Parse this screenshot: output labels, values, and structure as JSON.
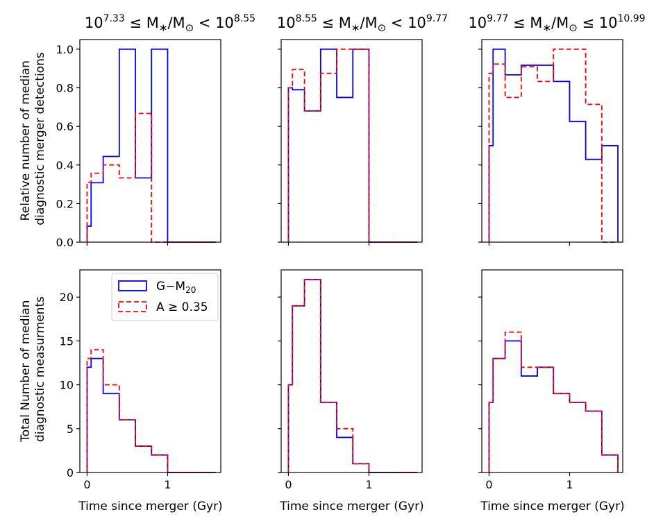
{
  "colors": {
    "gm20": "#0000ff",
    "asym": "#ff0000"
  },
  "legend": {
    "gm20_label": "G−M",
    "gm20_sub": "20",
    "asym_label": "A ≥ 0.35"
  },
  "titles": [
    {
      "pre": "10",
      "lo_exp": "7.33",
      "mid": " ≤ M",
      "star": "∗",
      "sep": "/M",
      "sun": "⊙",
      "op": " < 10",
      "hi_exp": "8.55"
    },
    {
      "pre": "10",
      "lo_exp": "8.55",
      "mid": " ≤ M",
      "star": "∗",
      "sep": "/M",
      "sun": "⊙",
      "op": " < 10",
      "hi_exp": "9.77"
    },
    {
      "pre": "10",
      "lo_exp": "9.77",
      "mid": " ≤ M",
      "star": "∗",
      "sep": "/M",
      "sun": "⊙",
      "op": " ≤ 10",
      "hi_exp": "10.99"
    }
  ],
  "ylabel_top": [
    "Relative number of median",
    "diagnostic merger detections"
  ],
  "ylabel_bottom": [
    "Total Number of median",
    "diagnostic measurments"
  ],
  "xlabel": "Time since merger (Gyr)",
  "chart_data": [
    {
      "type": "step-histogram",
      "panel": "top-left",
      "xlim": [
        -0.09,
        1.66
      ],
      "ylim": [
        0,
        1.05
      ],
      "xticks": [
        0,
        1
      ],
      "yticks": [
        0.0,
        0.2,
        0.4,
        0.6,
        0.8,
        1.0
      ],
      "ytick_labels": [
        "0.0",
        "0.2",
        "0.4",
        "0.6",
        "0.8",
        "1.0"
      ],
      "series": [
        {
          "name": "G−M20",
          "x": [
            0,
            0.05,
            0.2,
            0.4,
            0.6,
            0.8,
            1.0,
            1.6
          ],
          "y": [
            0.083,
            0.308,
            0.444,
            1.0,
            0.333,
            1.0,
            0
          ]
        },
        {
          "name": "A ≥ 0.35",
          "x": [
            0,
            0.05,
            0.2,
            0.4,
            0.6,
            0.8,
            1.0,
            1.6
          ],
          "y": [
            0.31,
            0.357,
            0.4,
            0.333,
            0.667,
            0,
            0
          ]
        }
      ]
    },
    {
      "type": "step-histogram",
      "panel": "top-middle",
      "xlim": [
        -0.09,
        1.66
      ],
      "ylim": [
        0,
        1.05
      ],
      "xticks": [
        0,
        1
      ],
      "yticks": [
        0.0,
        0.2,
        0.4,
        0.6,
        0.8,
        1.0
      ],
      "series": [
        {
          "name": "G−M20",
          "x": [
            0,
            0.05,
            0.2,
            0.4,
            0.6,
            0.8,
            1.0,
            1.6
          ],
          "y": [
            0.8,
            0.79,
            0.68,
            1.0,
            0.75,
            1.0,
            0
          ]
        },
        {
          "name": "A ≥ 0.35",
          "x": [
            0,
            0.05,
            0.2,
            0.4,
            0.6,
            0.8,
            1.0,
            1.6
          ],
          "y": [
            0.8,
            0.895,
            0.68,
            0.875,
            1.0,
            1.0,
            0
          ]
        }
      ]
    },
    {
      "type": "step-histogram",
      "panel": "top-right",
      "xlim": [
        -0.09,
        1.66
      ],
      "ylim": [
        0,
        1.05
      ],
      "xticks": [
        0,
        1
      ],
      "yticks": [
        0.0,
        0.2,
        0.4,
        0.6,
        0.8,
        1.0
      ],
      "series": [
        {
          "name": "G−M20",
          "x": [
            0,
            0.05,
            0.2,
            0.4,
            0.6,
            0.8,
            1.0,
            1.2,
            1.4,
            1.6
          ],
          "y": [
            0.5,
            1.0,
            0.867,
            0.917,
            0.917,
            0.833,
            0.625,
            0.429,
            0.5
          ]
        },
        {
          "name": "A ≥ 0.35",
          "x": [
            0,
            0.05,
            0.2,
            0.4,
            0.6,
            0.8,
            1.0,
            1.2,
            1.4,
            1.6
          ],
          "y": [
            0.875,
            0.923,
            0.75,
            0.909,
            0.833,
            1.0,
            1.0,
            0.714,
            0
          ]
        }
      ]
    },
    {
      "type": "step-histogram",
      "panel": "bottom-left",
      "xlim": [
        -0.09,
        1.66
      ],
      "ylim": [
        0,
        23.1
      ],
      "xticks": [
        0,
        1
      ],
      "xtick_labels": [
        "0",
        "1"
      ],
      "yticks": [
        0,
        5,
        10,
        15,
        20
      ],
      "ytick_labels": [
        "0",
        "5",
        "10",
        "15",
        "20"
      ],
      "series": [
        {
          "name": "G−M20",
          "x": [
            0,
            0.05,
            0.2,
            0.4,
            0.6,
            0.8,
            1.0,
            1.6
          ],
          "y": [
            12,
            13,
            9,
            6,
            3,
            2,
            0
          ]
        },
        {
          "name": "A ≥ 0.35",
          "x": [
            0,
            0.05,
            0.2,
            0.4,
            0.6,
            0.8,
            1.0,
            1.6
          ],
          "y": [
            13,
            14,
            10,
            6,
            3,
            2,
            0
          ]
        }
      ]
    },
    {
      "type": "step-histogram",
      "panel": "bottom-middle",
      "xlim": [
        -0.09,
        1.66
      ],
      "ylim": [
        0,
        23.1
      ],
      "xticks": [
        0,
        1
      ],
      "xtick_labels": [
        "0",
        "1"
      ],
      "yticks": [
        0,
        5,
        10,
        15,
        20
      ],
      "series": [
        {
          "name": "G−M20",
          "x": [
            0,
            0.05,
            0.2,
            0.4,
            0.6,
            0.8,
            1.0,
            1.6
          ],
          "y": [
            10,
            19,
            22,
            8,
            4,
            1,
            0
          ]
        },
        {
          "name": "A ≥ 0.35",
          "x": [
            0,
            0.05,
            0.2,
            0.4,
            0.6,
            0.8,
            1.0,
            1.6
          ],
          "y": [
            10,
            19,
            22,
            8,
            5,
            1,
            0
          ]
        }
      ]
    },
    {
      "type": "step-histogram",
      "panel": "bottom-right",
      "xlim": [
        -0.09,
        1.66
      ],
      "ylim": [
        0,
        23.1
      ],
      "xticks": [
        0,
        1
      ],
      "xtick_labels": [
        "0",
        "1"
      ],
      "yticks": [
        0,
        5,
        10,
        15,
        20
      ],
      "series": [
        {
          "name": "G−M20",
          "x": [
            0,
            0.05,
            0.2,
            0.4,
            0.6,
            0.8,
            1.0,
            1.2,
            1.4,
            1.6
          ],
          "y": [
            8,
            13,
            15,
            11,
            12,
            9,
            8,
            7,
            2
          ]
        },
        {
          "name": "A ≥ 0.35",
          "x": [
            0,
            0.05,
            0.2,
            0.4,
            0.6,
            0.8,
            1.0,
            1.2,
            1.4,
            1.6
          ],
          "y": [
            8,
            13,
            16,
            12,
            12,
            9,
            8,
            7,
            2
          ]
        }
      ]
    }
  ]
}
